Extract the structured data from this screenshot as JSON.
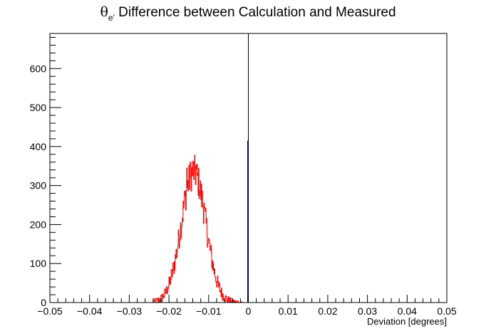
{
  "chart_data": {
    "type": "histogram",
    "title": {
      "symbol": "θ",
      "subscript": "e'",
      "text": " Difference between Calculation and Measured"
    },
    "xlabel": "Deviation [degrees]",
    "ylabel": "",
    "xlim": [
      -0.05,
      0.05
    ],
    "ylim": [
      0,
      690
    ],
    "x_ticks": [
      -0.05,
      -0.04,
      -0.03,
      -0.02,
      -0.01,
      0,
      0.01,
      0.02,
      0.03,
      0.04,
      0.05
    ],
    "x_tick_labels": [
      "−0.05",
      "−0.04",
      "−0.03",
      "−0.02",
      "−0.01",
      "0",
      "0.01",
      "0.02",
      "0.03",
      "0.04",
      "0.05"
    ],
    "y_ticks": [
      0,
      100,
      200,
      300,
      400,
      500,
      600
    ],
    "y_tick_labels": [
      "0",
      "100",
      "200",
      "300",
      "400",
      "500",
      "600"
    ],
    "grid": false,
    "legend": "none",
    "series": [
      {
        "color": "#ff0000",
        "style": "step",
        "approx_distribution": {
          "mean": -0.0138,
          "sigma": 0.0031,
          "peak": 335,
          "support": [
            -0.024,
            -0.0015
          ]
        },
        "notable_bins": [
          {
            "x": -0.0145,
            "y": 360
          },
          {
            "x": -0.0132,
            "y": 352
          },
          {
            "x": -0.0155,
            "y": 345
          },
          {
            "x": -0.0112,
            "y": 255
          },
          {
            "x": -0.0175,
            "y": 175
          },
          {
            "x": -0.0205,
            "y": 40
          },
          {
            "x": -0.0075,
            "y": 40
          }
        ]
      },
      {
        "color": "#00008b",
        "style": "spike",
        "x": 0,
        "value": 415
      }
    ],
    "zero_line": {
      "x": 0,
      "color": "#000000",
      "from": 0,
      "to": 690
    }
  }
}
